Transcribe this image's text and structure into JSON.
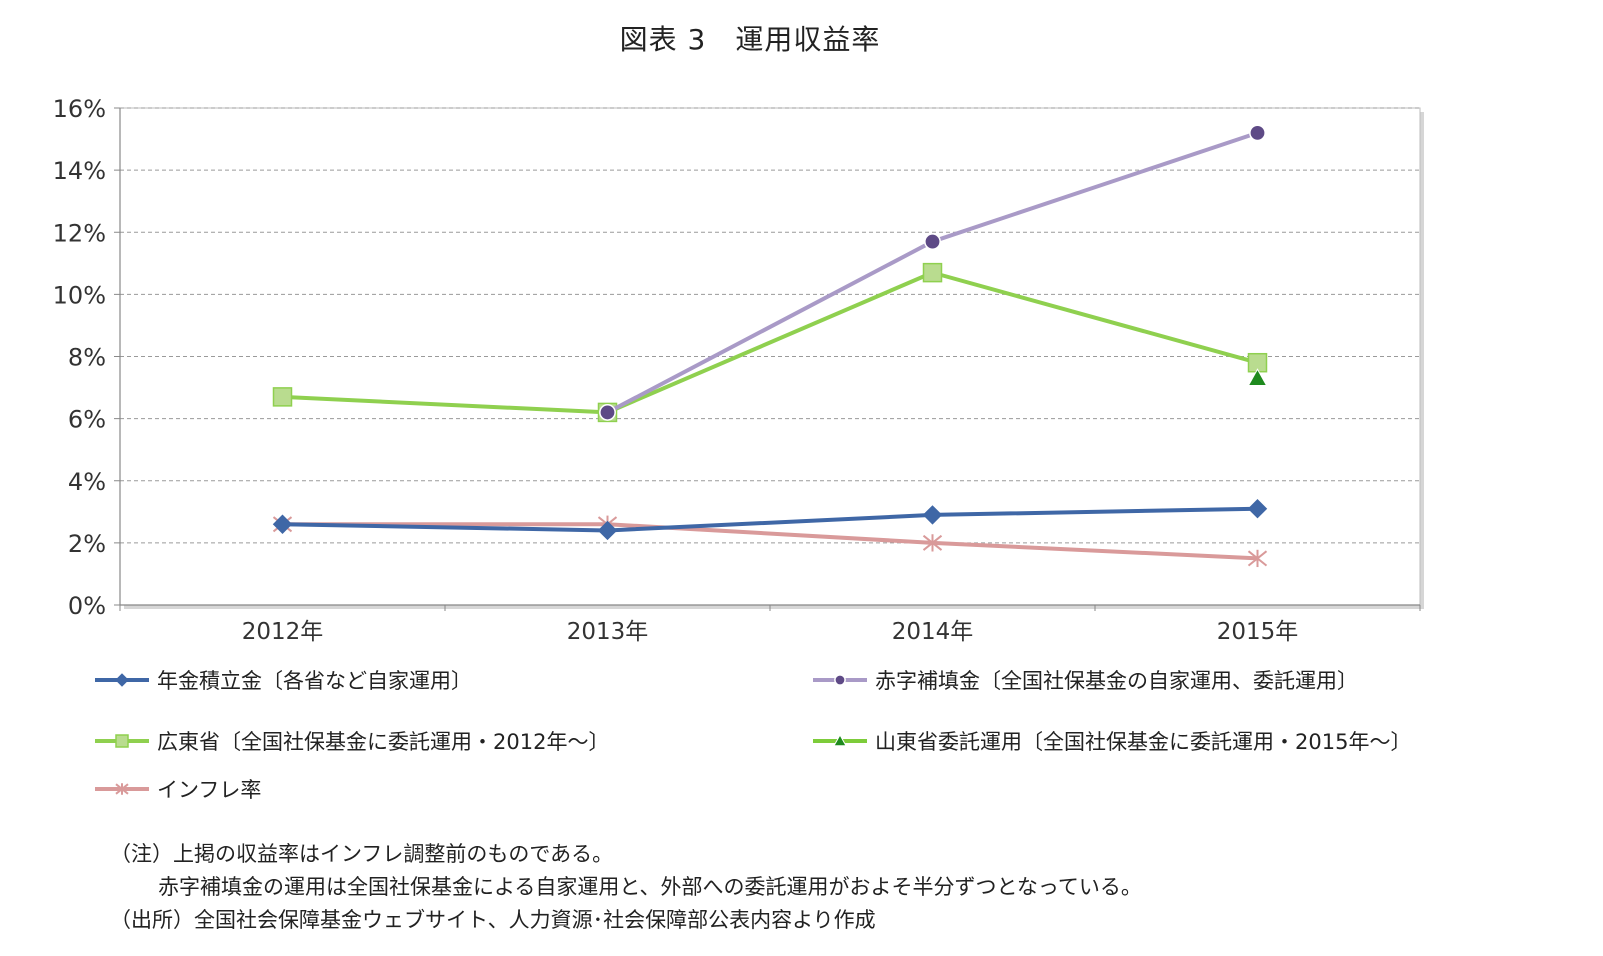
{
  "chart_data": {
    "type": "line",
    "title": "図表 3　運用収益率",
    "categories": [
      "2012年",
      "2013年",
      "2014年",
      "2015年"
    ],
    "ylim": [
      0,
      16
    ],
    "yticks": [
      "0%",
      "2%",
      "4%",
      "6%",
      "8%",
      "10%",
      "12%",
      "14%",
      "16%"
    ],
    "grid": true,
    "legend_position": "bottom",
    "series": [
      {
        "name": "年金積立金〔各省など自家運用〕",
        "values": [
          2.6,
          2.4,
          2.9,
          3.1
        ],
        "color": "#3f67a6",
        "marker": "diamond"
      },
      {
        "name": "赤字補填金〔全国社保基金の自家運用、委託運用〕",
        "values": [
          null,
          6.2,
          11.7,
          15.2
        ],
        "color": "#a99ac7",
        "marker": "circle",
        "marker_color": "#5e4a86"
      },
      {
        "name": "広東省〔全国社保基金に委託運用・2012年〜〕",
        "values": [
          6.7,
          6.2,
          10.7,
          7.8
        ],
        "color": "#8fd04f",
        "marker": "square",
        "marker_color": "#b9dc8f"
      },
      {
        "name": "山東省委託運用〔全国社保基金に委託運用・2015年〜〕",
        "values": [
          null,
          null,
          null,
          7.3
        ],
        "color": "#7dcc3a",
        "marker": "triangle",
        "marker_color": "#1e8a1e"
      },
      {
        "name": "インフレ率",
        "values": [
          2.6,
          2.6,
          2.0,
          1.5
        ],
        "color": "#d99a9a",
        "marker": "star"
      }
    ],
    "notes": [
      "（注）上掲の収益率はインフレ調整前のものである。",
      "赤字補填金の運用は全国社保基金による自家運用と、外部への委託運用がおよそ半分ずつとなっている。",
      "（出所）全国社会保障基金ウェブサイト、人力資源･社会保障部公表内容より作成"
    ]
  }
}
